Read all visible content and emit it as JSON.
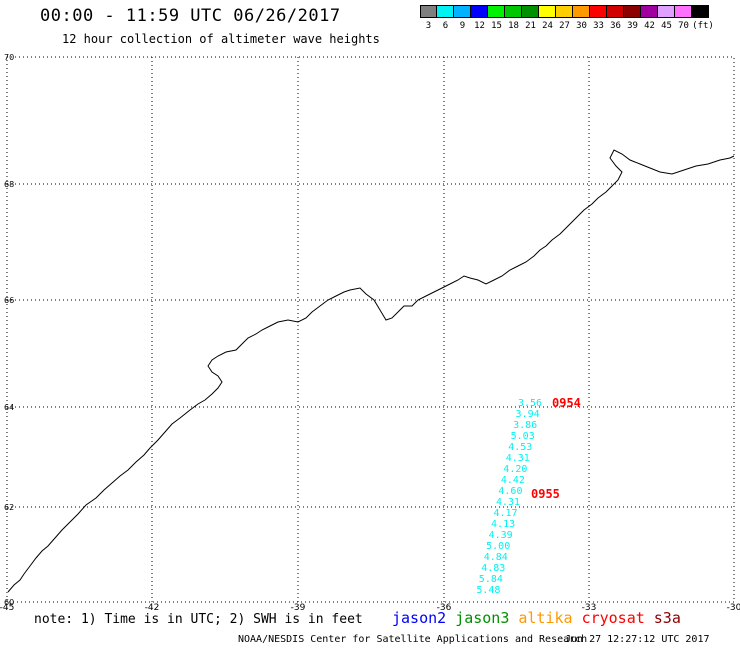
{
  "header": {
    "title": "00:00 - 11:59 UTC 06/26/2017",
    "subtitle": "12 hour collection of altimeter wave heights"
  },
  "legend": {
    "colors": [
      "#7f7f7f",
      "#00f2f2",
      "#00b2ff",
      "#0000ff",
      "#00f200",
      "#00c800",
      "#009100",
      "#ffff00",
      "#ffce00",
      "#ff9900",
      "#ff0000",
      "#d00000",
      "#8c0000",
      "#a000a0",
      "#e0a0ff",
      "#ff70ff",
      "#000000"
    ],
    "labels": [
      "3",
      "6",
      "9",
      "12",
      "15",
      "18",
      "21",
      "24",
      "27",
      "30",
      "33",
      "36",
      "39",
      "42",
      "45",
      "70",
      "(ft)"
    ]
  },
  "map": {
    "lat_labels": [
      "70",
      "68",
      "66",
      "64",
      "62",
      "60"
    ],
    "lon_labels": [
      "-45",
      "-42",
      "-39",
      "-36",
      "-33",
      "-30"
    ],
    "track_color": "#00f2f2",
    "swh_values": [
      "3.56",
      "3.94",
      "3.86",
      "5.03",
      "4.53",
      "4.31",
      "4.20",
      "4.42",
      "4.60",
      "4.31",
      "4.17",
      "4.13",
      "4.39",
      "5.00",
      "4.84",
      "4.83",
      "5.84",
      "5.48"
    ],
    "pass_time_color": "#ff0000",
    "pass_times": [
      "0954",
      "0955"
    ]
  },
  "footer": {
    "note": "note: 1) Time is in UTC; 2) SWH is in feet",
    "satellites": [
      {
        "name": "jason2",
        "color": "#0000ff"
      },
      {
        "name": "jason3",
        "color": "#009100"
      },
      {
        "name": "altika",
        "color": "#ff9900"
      },
      {
        "name": "cryosat",
        "color": "#ff0000"
      },
      {
        "name": "s3a",
        "color": "#8c0000"
      }
    ],
    "credit": "NOAA/NESDIS Center for Satellite Applications and Research",
    "timestamp": "Jun 27 12:27:12 UTC 2017"
  }
}
